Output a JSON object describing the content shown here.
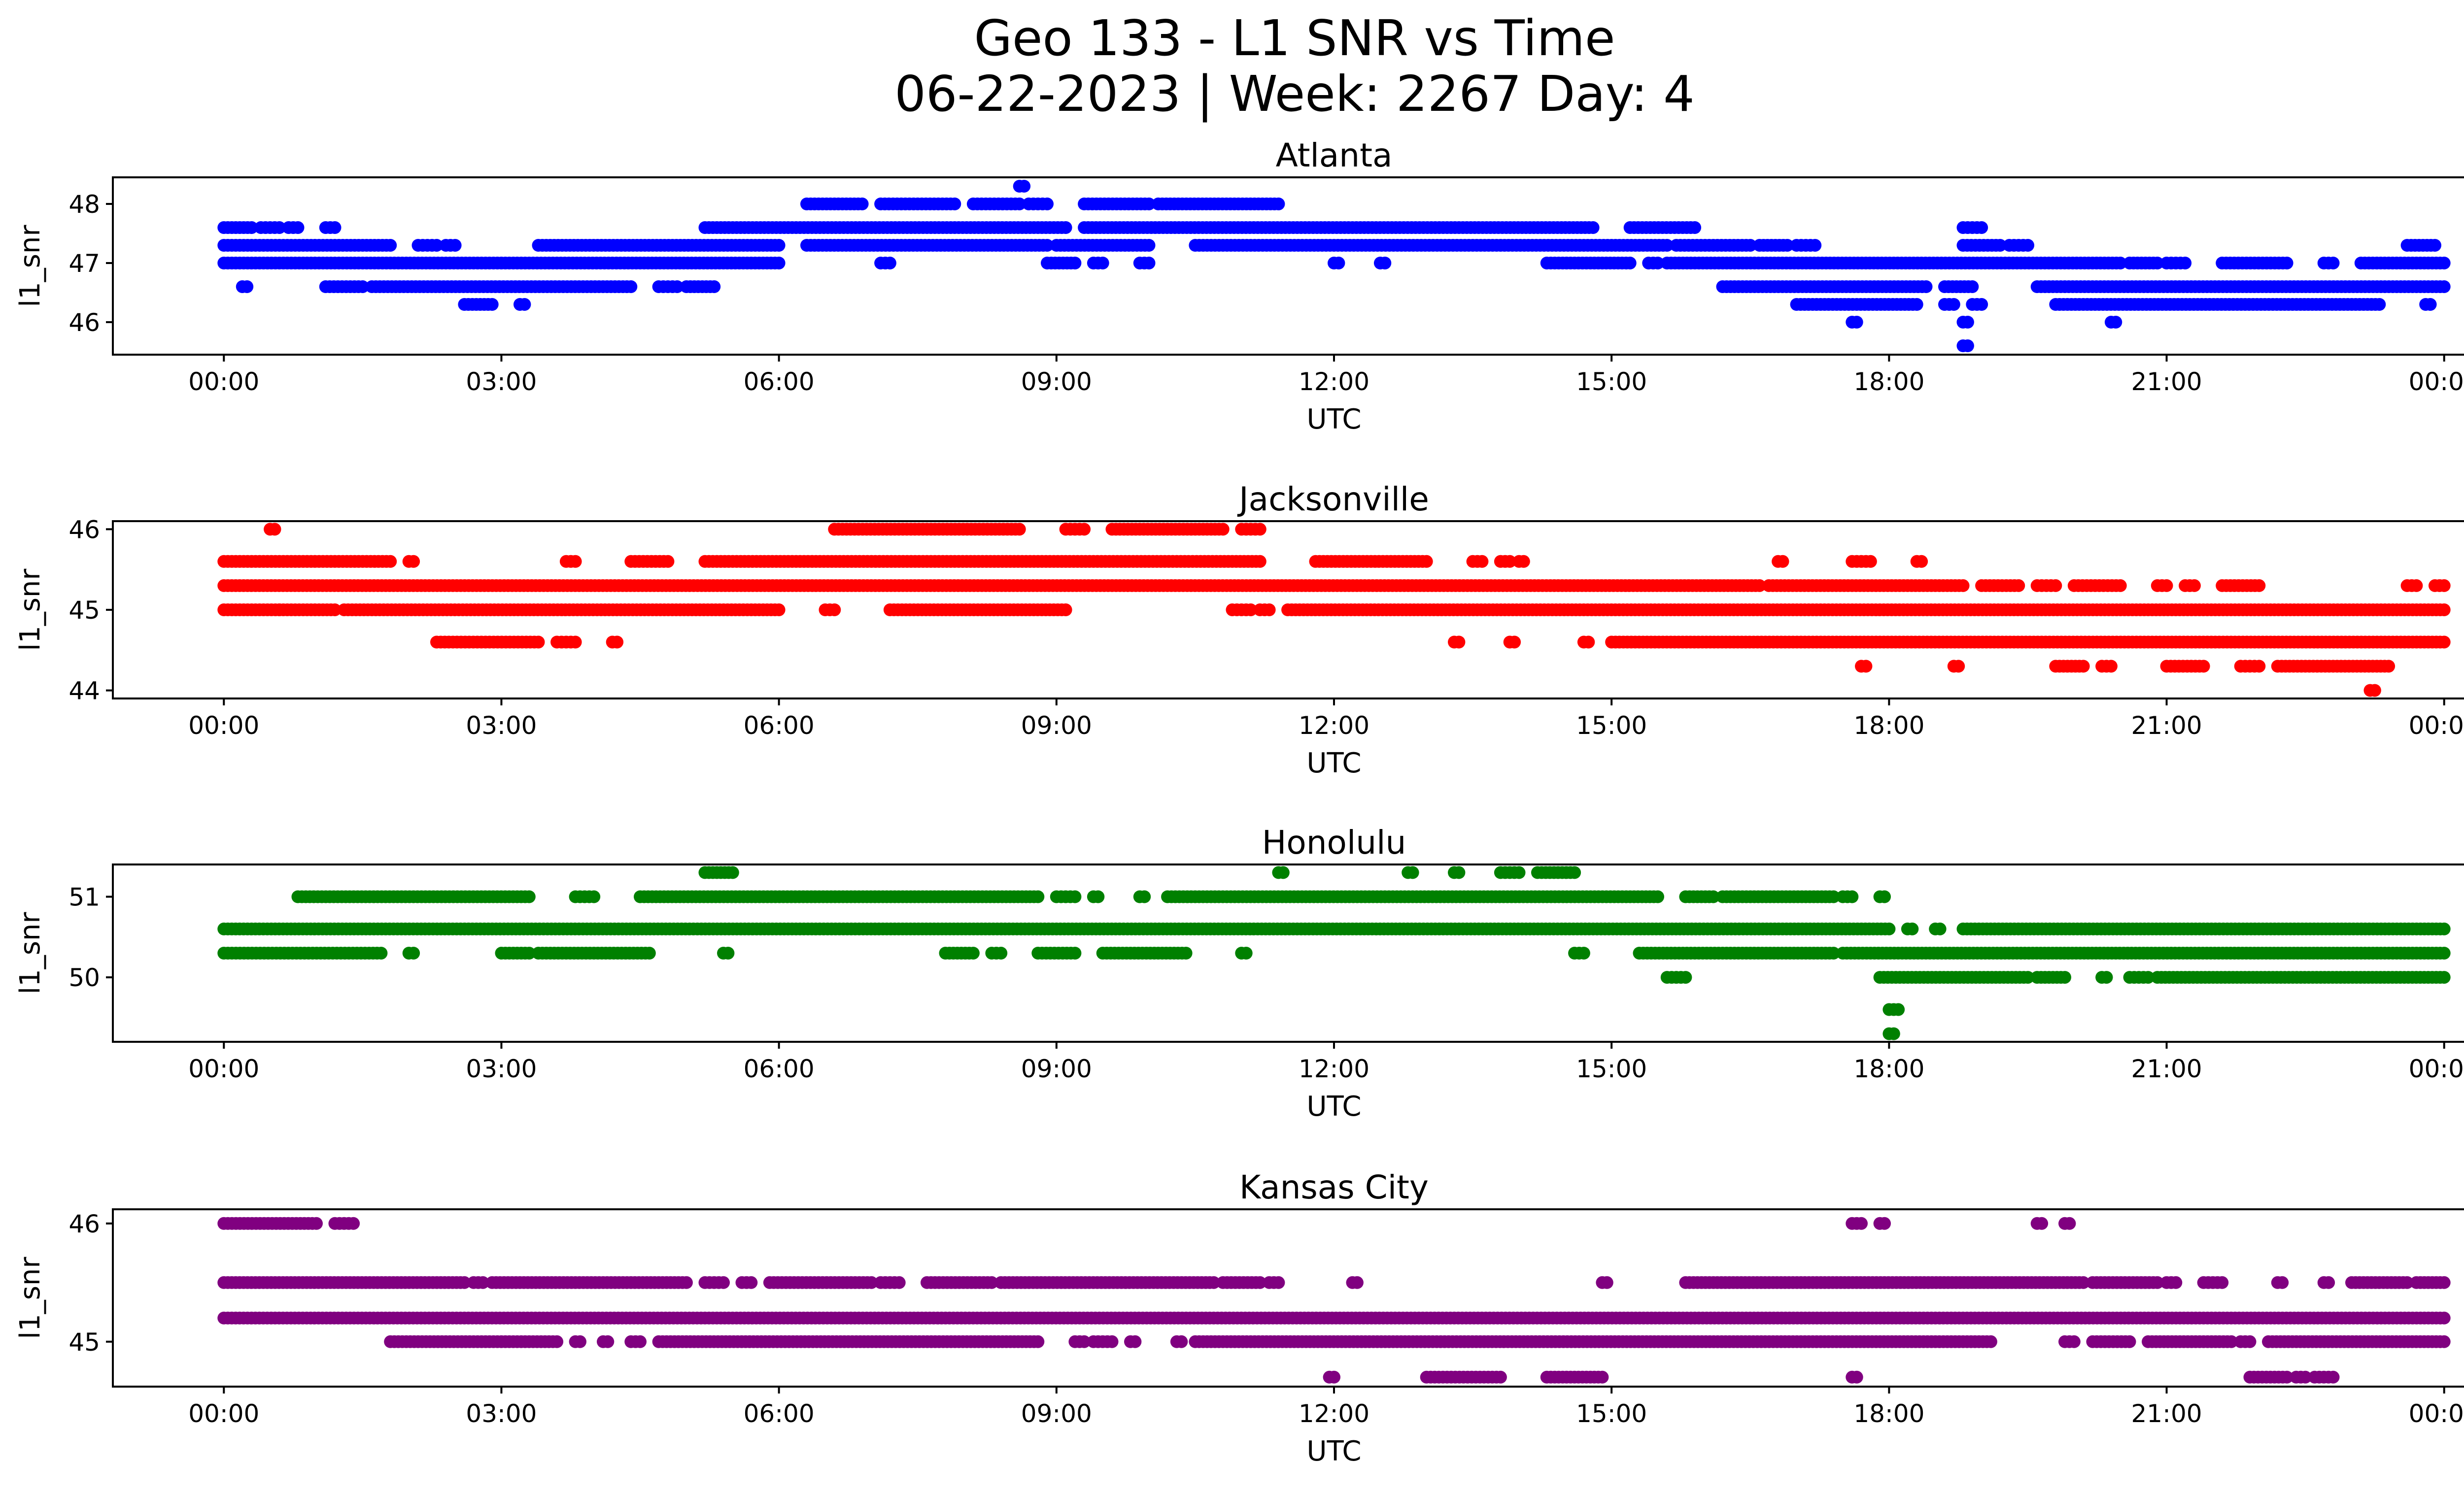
{
  "figure": {
    "title_line1": "Geo 133 - L1 SNR vs Time",
    "title_line2": "06-22-2023 | Week: 2267 Day: 4"
  },
  "chart_data": [
    {
      "type": "scatter",
      "title": "Atlanta",
      "xlabel": "UTC",
      "ylabel": "l1_snr",
      "color": "#0000ff",
      "xlim_hours": [
        -1.2,
        25.2
      ],
      "ylim": [
        45.45,
        48.45
      ],
      "x_tick_labels": [
        "00:00",
        "03:00",
        "06:00",
        "09:00",
        "12:00",
        "15:00",
        "18:00",
        "21:00",
        "00:00"
      ],
      "x_tick_hours": [
        0,
        3,
        6,
        9,
        12,
        15,
        18,
        21,
        24
      ],
      "yticks": [
        46,
        47,
        48
      ],
      "bands": [
        {
          "y": 47.3,
          "segments": [
            [
              0,
              1.8
            ],
            [
              2.1,
              2.3
            ],
            [
              2.4,
              2.5
            ],
            [
              3.4,
              6.0
            ],
            [
              6.3,
              8.9
            ],
            [
              9.0,
              10.0
            ],
            [
              10.5,
              15.6
            ],
            [
              15.7,
              16.5
            ],
            [
              16.6,
              16.9
            ],
            [
              17.0,
              17.2
            ],
            [
              18.8,
              19.2
            ],
            [
              19.3,
              19.5
            ],
            [
              23.6,
              23.9
            ]
          ]
        },
        {
          "y": 47.0,
          "segments": [
            [
              0,
              6.0
            ],
            [
              7.1,
              7.2
            ],
            [
              8.9,
              9.2
            ],
            [
              9.4,
              9.5
            ],
            [
              9.9,
              10.0
            ],
            [
              12.0,
              12.05
            ],
            [
              12.5,
              12.55
            ],
            [
              14.3,
              15.2
            ],
            [
              15.4,
              15.5
            ],
            [
              15.6,
              20.5
            ],
            [
              20.6,
              20.9
            ],
            [
              21.0,
              21.2
            ],
            [
              21.6,
              22.3
            ],
            [
              22.7,
              22.8
            ],
            [
              23.1,
              24.0
            ]
          ]
        },
        {
          "y": 47.6,
          "segments": [
            [
              0,
              0.3
            ],
            [
              0.4,
              0.6
            ],
            [
              0.7,
              0.8
            ],
            [
              1.1,
              1.2
            ],
            [
              5.2,
              9.1
            ],
            [
              9.3,
              14.8
            ],
            [
              15.2,
              15.9
            ],
            [
              18.8,
              19.0
            ]
          ]
        },
        {
          "y": 46.6,
          "segments": [
            [
              0.2,
              0.25
            ],
            [
              1.1,
              1.5
            ],
            [
              1.6,
              4.4
            ],
            [
              4.7,
              4.9
            ],
            [
              5.0,
              5.3
            ],
            [
              16.2,
              18.4
            ],
            [
              18.6,
              18.9
            ],
            [
              19.6,
              24.0
            ]
          ]
        },
        {
          "y": 48.0,
          "segments": [
            [
              6.3,
              6.9
            ],
            [
              7.1,
              7.9
            ],
            [
              8.1,
              8.6
            ],
            [
              8.7,
              8.9
            ],
            [
              9.3,
              10.0
            ],
            [
              10.1,
              11.4
            ]
          ]
        },
        {
          "y": 46.3,
          "segments": [
            [
              2.6,
              2.9
            ],
            [
              3.2,
              3.25
            ],
            [
              17.0,
              18.3
            ],
            [
              18.6,
              18.7
            ],
            [
              18.9,
              19.0
            ],
            [
              19.8,
              23.3
            ],
            [
              23.8,
              23.85
            ]
          ]
        },
        {
          "y": 48.3,
          "segments": [
            [
              8.6,
              8.65
            ]
          ]
        },
        {
          "y": 46.0,
          "segments": [
            [
              17.6,
              17.65
            ],
            [
              18.8,
              18.85
            ],
            [
              20.4,
              20.45
            ]
          ]
        },
        {
          "y": 45.6,
          "segments": [
            [
              18.8,
              18.85
            ]
          ]
        }
      ]
    },
    {
      "type": "scatter",
      "title": "Jacksonville",
      "xlabel": "UTC",
      "ylabel": "l1_snr",
      "color": "#ff0000",
      "xlim_hours": [
        -1.2,
        25.2
      ],
      "ylim": [
        43.9,
        46.1
      ],
      "x_tick_labels": [
        "00:00",
        "03:00",
        "06:00",
        "09:00",
        "12:00",
        "15:00",
        "18:00",
        "21:00",
        "00:00"
      ],
      "x_tick_hours": [
        0,
        3,
        6,
        9,
        12,
        15,
        18,
        21,
        24
      ],
      "yticks": [
        44,
        45,
        46
      ],
      "bands": [
        {
          "y": 45.3,
          "segments": [
            [
              0,
              16.6
            ],
            [
              16.7,
              18.8
            ],
            [
              19.0,
              19.4
            ],
            [
              19.6,
              19.8
            ],
            [
              20.0,
              20.5
            ],
            [
              20.9,
              21.0
            ],
            [
              21.2,
              21.3
            ],
            [
              21.6,
              22.0
            ],
            [
              23.6,
              23.7
            ],
            [
              23.9,
              24.0
            ]
          ]
        },
        {
          "y": 45.0,
          "segments": [
            [
              0,
              0.6
            ],
            [
              0.6,
              1.2
            ],
            [
              1.3,
              6.0
            ],
            [
              6.5,
              6.6
            ],
            [
              7.2,
              9.1
            ],
            [
              10.9,
              11.1
            ],
            [
              11.2,
              11.3
            ],
            [
              11.5,
              24.0
            ]
          ]
        },
        {
          "y": 45.6,
          "segments": [
            [
              0,
              1.8
            ],
            [
              2.0,
              2.05
            ],
            [
              3.7,
              3.8
            ],
            [
              4.4,
              4.8
            ],
            [
              5.2,
              11.2
            ],
            [
              11.8,
              13.0
            ],
            [
              13.5,
              13.6
            ],
            [
              13.8,
              13.9
            ],
            [
              14.0,
              14.05
            ],
            [
              16.8,
              16.85
            ],
            [
              17.6,
              17.8
            ],
            [
              18.3,
              18.35
            ]
          ]
        },
        {
          "y": 46.0,
          "segments": [
            [
              0.5,
              0.55
            ],
            [
              6.6,
              8.6
            ],
            [
              9.1,
              9.3
            ],
            [
              9.6,
              10.8
            ],
            [
              11.0,
              11.2
            ]
          ]
        },
        {
          "y": 44.6,
          "segments": [
            [
              2.3,
              3.4
            ],
            [
              3.6,
              3.8
            ],
            [
              4.2,
              4.25
            ],
            [
              13.3,
              13.35
            ],
            [
              13.9,
              13.95
            ],
            [
              14.7,
              14.75
            ],
            [
              15.0,
              24.0
            ]
          ]
        },
        {
          "y": 44.3,
          "segments": [
            [
              17.7,
              17.75
            ],
            [
              18.7,
              18.75
            ],
            [
              19.8,
              20.1
            ],
            [
              20.3,
              20.4
            ],
            [
              21.0,
              21.4
            ],
            [
              21.8,
              22.0
            ],
            [
              22.2,
              23.4
            ]
          ]
        },
        {
          "y": 44.0,
          "segments": [
            [
              23.2,
              23.25
            ]
          ]
        }
      ]
    },
    {
      "type": "scatter",
      "title": "Honolulu",
      "xlabel": "UTC",
      "ylabel": "l1_snr",
      "color": "#008000",
      "xlim_hours": [
        -1.2,
        25.2
      ],
      "ylim": [
        49.2,
        51.4
      ],
      "x_tick_labels": [
        "00:00",
        "03:00",
        "06:00",
        "09:00",
        "12:00",
        "15:00",
        "18:00",
        "21:00",
        "00:00"
      ],
      "x_tick_hours": [
        0,
        3,
        6,
        9,
        12,
        15,
        18,
        21,
        24
      ],
      "yticks": [
        50,
        51
      ],
      "bands": [
        {
          "y": 50.6,
          "segments": [
            [
              0,
              18.0
            ],
            [
              18.2,
              18.25
            ],
            [
              18.5,
              18.55
            ],
            [
              18.8,
              24.0
            ]
          ]
        },
        {
          "y": 50.3,
          "segments": [
            [
              0,
              1.7
            ],
            [
              2.0,
              2.05
            ],
            [
              3.0,
              3.3
            ],
            [
              3.4,
              4.6
            ],
            [
              5.4,
              5.45
            ],
            [
              7.8,
              8.1
            ],
            [
              8.3,
              8.4
            ],
            [
              8.8,
              9.2
            ],
            [
              9.5,
              10.4
            ],
            [
              11.0,
              11.05
            ],
            [
              14.6,
              14.7
            ],
            [
              15.3,
              17.4
            ],
            [
              17.5,
              24.0
            ]
          ]
        },
        {
          "y": 51.0,
          "segments": [
            [
              0.8,
              3.3
            ],
            [
              3.8,
              4.0
            ],
            [
              4.5,
              8.8
            ],
            [
              9.0,
              9.2
            ],
            [
              9.4,
              9.45
            ],
            [
              9.9,
              9.95
            ],
            [
              10.2,
              15.5
            ],
            [
              15.8,
              16.1
            ],
            [
              16.2,
              17.4
            ],
            [
              17.5,
              17.6
            ],
            [
              17.9,
              17.95
            ]
          ]
        },
        {
          "y": 51.3,
          "segments": [
            [
              5.2,
              5.5
            ],
            [
              11.4,
              11.45
            ],
            [
              12.8,
              12.85
            ],
            [
              13.3,
              13.35
            ],
            [
              13.8,
              14.0
            ],
            [
              14.2,
              14.6
            ]
          ]
        },
        {
          "y": 50.0,
          "segments": [
            [
              15.6,
              15.8
            ],
            [
              17.9,
              19.5
            ],
            [
              19.6,
              19.9
            ],
            [
              20.3,
              20.35
            ],
            [
              20.6,
              20.8
            ],
            [
              20.9,
              24.0
            ]
          ]
        },
        {
          "y": 49.6,
          "segments": [
            [
              18.0,
              18.1
            ]
          ]
        },
        {
          "y": 49.3,
          "segments": [
            [
              18.0,
              18.05
            ]
          ]
        }
      ]
    },
    {
      "type": "scatter",
      "title": "Kansas City",
      "xlabel": "UTC",
      "ylabel": "l1_snr",
      "color": "#800080",
      "xlim_hours": [
        -1.2,
        25.2
      ],
      "ylim": [
        44.62,
        46.12
      ],
      "x_tick_labels": [
        "00:00",
        "03:00",
        "06:00",
        "09:00",
        "12:00",
        "15:00",
        "18:00",
        "21:00",
        "00:00"
      ],
      "x_tick_hours": [
        0,
        3,
        6,
        9,
        12,
        15,
        18,
        21,
        24
      ],
      "yticks": [
        45,
        46
      ],
      "bands": [
        {
          "y": 45.5,
          "segments": [
            [
              0,
              2.6
            ],
            [
              2.7,
              2.8
            ],
            [
              2.9,
              5.0
            ],
            [
              5.2,
              5.4
            ],
            [
              5.6,
              5.7
            ],
            [
              5.9,
              7.0
            ],
            [
              7.1,
              7.3
            ],
            [
              7.6,
              8.3
            ],
            [
              8.4,
              10.7
            ],
            [
              10.8,
              11.2
            ],
            [
              11.3,
              11.4
            ],
            [
              12.2,
              12.25
            ],
            [
              14.9,
              14.95
            ],
            [
              15.8,
              20.1
            ],
            [
              20.2,
              20.9
            ],
            [
              21.0,
              21.1
            ],
            [
              21.4,
              21.6
            ],
            [
              22.2,
              22.25
            ],
            [
              22.7,
              22.75
            ],
            [
              23.0,
              23.6
            ],
            [
              23.7,
              24.0
            ]
          ]
        },
        {
          "y": 45.2,
          "segments": [
            [
              0,
              24.0
            ]
          ]
        },
        {
          "y": 45.0,
          "segments": [
            [
              1.8,
              3.6
            ],
            [
              3.8,
              3.85
            ],
            [
              4.1,
              4.15
            ],
            [
              4.4,
              4.5
            ],
            [
              4.7,
              8.8
            ],
            [
              9.2,
              9.3
            ],
            [
              9.4,
              9.6
            ],
            [
              9.8,
              9.85
            ],
            [
              10.3,
              10.35
            ],
            [
              10.5,
              19.1
            ],
            [
              19.9,
              20.0
            ],
            [
              20.2,
              20.6
            ],
            [
              20.8,
              21.7
            ],
            [
              21.8,
              21.9
            ],
            [
              22.1,
              24.0
            ]
          ]
        },
        {
          "y": 46.0,
          "segments": [
            [
              0,
              1.0
            ],
            [
              1.2,
              1.4
            ],
            [
              17.6,
              17.7
            ],
            [
              17.9,
              17.95
            ],
            [
              19.6,
              19.65
            ],
            [
              19.9,
              19.95
            ]
          ]
        },
        {
          "y": 44.7,
          "segments": [
            [
              11.95,
              12.0
            ],
            [
              13.0,
              13.8
            ],
            [
              14.3,
              14.9
            ],
            [
              17.6,
              17.65
            ],
            [
              21.9,
              22.3
            ],
            [
              22.4,
              22.5
            ],
            [
              22.6,
              22.8
            ]
          ]
        }
      ]
    }
  ]
}
